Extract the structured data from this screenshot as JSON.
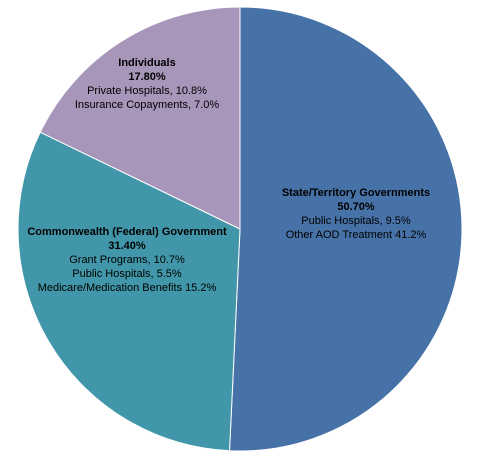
{
  "chart_data": {
    "type": "pie",
    "title": "",
    "slices": [
      {
        "name": "State/Territory Governments",
        "value": 50.7,
        "pct_label": "50.70%",
        "details": [
          "Public Hospitals, 9.5%",
          "Other AOD Treatment 41.2%"
        ],
        "color": "#4672A7"
      },
      {
        "name": "Commonwealth (Federal) Government",
        "value": 31.4,
        "pct_label": "31.40%",
        "details": [
          "Grant Programs, 10.7%",
          "Public Hospitals, 5.5%",
          "Medicare/Medication Benefits 15.2%"
        ],
        "color": "#4197A9"
      },
      {
        "name": "Individuals",
        "value": 17.8,
        "pct_label": "17.80%",
        "details": [
          "Private Hospitals, 10.8%",
          "Insurance Copayments, 7.0%"
        ],
        "color": "#A895BA"
      }
    ],
    "start": "12 o'clock",
    "direction": "clockwise",
    "legend": "none",
    "labels": "inside slices"
  }
}
